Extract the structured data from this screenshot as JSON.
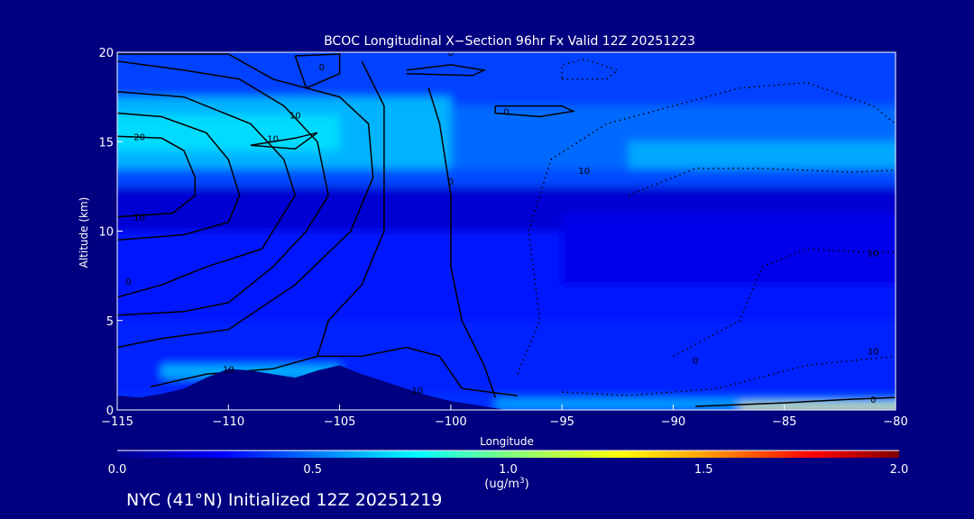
{
  "chart_data": {
    "type": "heatmap",
    "title": "BCOC Longitudinal X−Section 96hr  Fx Valid 12Z 20251223",
    "xlabel": "Longitude",
    "ylabel": "Altitude (km)",
    "xlim": [
      -115,
      -80
    ],
    "ylim": [
      0,
      20
    ],
    "xticks": [
      -115,
      -110,
      -105,
      -100,
      -95,
      -90,
      -85,
      -80
    ],
    "xtick_labels": [
      "−115",
      "−110",
      "−105",
      "−100",
      "−95",
      "−90",
      "−85",
      "−80"
    ],
    "yticks": [
      0,
      5,
      10,
      15,
      20
    ],
    "ytick_labels": [
      "0",
      "5",
      "10",
      "15",
      "20"
    ],
    "colorbar": {
      "range": [
        0,
        2
      ],
      "ticks": [
        "0.0",
        "0.5",
        "1.0",
        "1.5",
        "2.0"
      ],
      "unit_line1": "(ug/m",
      "unit_sup": "3",
      "unit_line2": ")",
      "stops": [
        [
          0,
          "#000090"
        ],
        [
          0.27,
          "#0000ff"
        ],
        [
          0.77,
          "#00ffff"
        ],
        [
          1.0,
          "#80ff80"
        ],
        [
          1.29,
          "#ffff00"
        ],
        [
          1.5,
          "#ffa000"
        ],
        [
          1.78,
          "#ff0000"
        ],
        [
          2.0,
          "#800000"
        ]
      ]
    },
    "field_layers": [
      {
        "lon": [
          -115,
          -80
        ],
        "alt": [
          0,
          1
        ],
        "value": 0.36
      },
      {
        "lon": [
          -115,
          -80
        ],
        "alt": [
          1,
          5
        ],
        "value": 0.34
      },
      {
        "lon": [
          -115,
          -80
        ],
        "alt": [
          5,
          10
        ],
        "value": 0.31
      },
      {
        "lon": [
          -115,
          -80
        ],
        "alt": [
          10,
          12.5
        ],
        "value": 0.16
      },
      {
        "lon": [
          -115,
          -80
        ],
        "alt": [
          12.5,
          13.5
        ],
        "value": 0.42
      },
      {
        "lon": [
          -115,
          -80
        ],
        "alt": [
          13.5,
          17
        ],
        "value": 0.48
      },
      {
        "lon": [
          -115,
          -80
        ],
        "alt": [
          17,
          20
        ],
        "value": 0.4
      },
      {
        "lon": [
          -115,
          -100
        ],
        "alt": [
          13.5,
          17.5
        ],
        "value": 0.62
      },
      {
        "lon": [
          -115,
          -105
        ],
        "alt": [
          14.5,
          16.5
        ],
        "value": 0.7
      },
      {
        "lon": [
          -92,
          -80
        ],
        "alt": [
          13.5,
          15
        ],
        "value": 0.6
      },
      {
        "lon": [
          -95,
          -80
        ],
        "alt": [
          7,
          11
        ],
        "value": 0.22
      },
      {
        "lon": [
          -113,
          -105
        ],
        "alt": [
          1.8,
          2.5
        ],
        "value": 0.62
      },
      {
        "lon": [
          -98,
          -80
        ],
        "alt": [
          0.1,
          0.6
        ],
        "value": 0.6
      },
      {
        "lon": [
          -87,
          -80
        ],
        "alt": [
          0,
          0.3
        ],
        "value": 1.25
      }
    ],
    "terrain": [
      [
        -115,
        0
      ],
      [
        -115,
        0.8
      ],
      [
        -114,
        0.7
      ],
      [
        -113,
        0.9
      ],
      [
        -112,
        1.2
      ],
      [
        -111,
        1.8
      ],
      [
        -110,
        2.3
      ],
      [
        -109,
        2.2
      ],
      [
        -108,
        2.0
      ],
      [
        -107,
        1.8
      ],
      [
        -106,
        2.2
      ],
      [
        -105,
        2.5
      ],
      [
        -104,
        2.0
      ],
      [
        -103,
        1.6
      ],
      [
        -102,
        1.2
      ],
      [
        -101,
        0.8
      ],
      [
        -100,
        0.5
      ],
      [
        -99,
        0.3
      ],
      [
        -97.5,
        0
      ]
    ],
    "contours_solid": [
      [
        [
          -115,
          15.3
        ],
        [
          -113,
          15.2
        ],
        [
          -112,
          14.5
        ],
        [
          -111.5,
          13
        ],
        [
          -111.5,
          12
        ],
        [
          -112.5,
          11
        ],
        [
          -115,
          10.8
        ]
      ],
      [
        [
          -115,
          16.6
        ],
        [
          -113,
          16.4
        ],
        [
          -111,
          15.5
        ],
        [
          -110,
          14
        ],
        [
          -109.5,
          12
        ],
        [
          -110,
          10.5
        ],
        [
          -112,
          9.8
        ],
        [
          -115,
          9.5
        ]
      ],
      [
        [
          -115,
          17.8
        ],
        [
          -112,
          17.5
        ],
        [
          -109,
          16
        ],
        [
          -107.5,
          14
        ],
        [
          -107,
          12
        ],
        [
          -108.5,
          9
        ],
        [
          -111,
          8
        ],
        [
          -113,
          7
        ],
        [
          -115,
          6.3
        ]
      ],
      [
        [
          -115,
          19.5
        ],
        [
          -112,
          19
        ],
        [
          -109.5,
          18.5
        ],
        [
          -107.5,
          17
        ],
        [
          -106,
          15
        ],
        [
          -105.5,
          12
        ],
        [
          -106.5,
          10
        ],
        [
          -108,
          8
        ],
        [
          -110,
          6
        ],
        [
          -112,
          5.5
        ],
        [
          -115,
          5.3
        ]
      ],
      [
        [
          -115,
          19.9
        ],
        [
          -110,
          19.9
        ],
        [
          -108,
          18.5
        ],
        [
          -105,
          17.5
        ],
        [
          -103.7,
          16
        ],
        [
          -103.5,
          13
        ],
        [
          -104.5,
          10
        ],
        [
          -107,
          7
        ],
        [
          -110,
          4.5
        ],
        [
          -113,
          4
        ],
        [
          -115,
          3.5
        ]
      ],
      [
        [
          -104,
          19.5
        ],
        [
          -103,
          17
        ],
        [
          -103,
          14
        ],
        [
          -103,
          10
        ],
        [
          -104,
          7
        ],
        [
          -105.5,
          5
        ],
        [
          -106,
          3
        ]
      ],
      [
        [
          -101,
          18
        ],
        [
          -100.5,
          16
        ],
        [
          -100,
          12
        ],
        [
          -100,
          8
        ],
        [
          -99.5,
          5
        ],
        [
          -98.5,
          2.5
        ],
        [
          -98,
          0.7
        ]
      ],
      [
        [
          -107,
          19.8
        ],
        [
          -105,
          19.9
        ],
        [
          -105,
          18.8
        ],
        [
          -106.5,
          18
        ],
        [
          -107,
          19.8
        ]
      ],
      [
        [
          -109,
          14.8
        ],
        [
          -107,
          15.2
        ],
        [
          -106,
          15.5
        ],
        [
          -107,
          14.6
        ],
        [
          -109,
          14.8
        ]
      ],
      [
        [
          -98,
          17
        ],
        [
          -95,
          17
        ],
        [
          -94.5,
          16.7
        ],
        [
          -96,
          16.4
        ],
        [
          -98,
          16.6
        ],
        [
          -98,
          17
        ]
      ],
      [
        [
          -102,
          18.8
        ],
        [
          -99,
          18.7
        ],
        [
          -98.5,
          19
        ],
        [
          -100,
          19.3
        ],
        [
          -102,
          19
        ]
      ],
      [
        [
          -113.5,
          1.3
        ],
        [
          -111,
          2
        ],
        [
          -108,
          2.3
        ],
        [
          -106,
          3
        ],
        [
          -104,
          3
        ],
        [
          -102,
          3.5
        ],
        [
          -100.5,
          3
        ],
        [
          -99.5,
          1.2
        ],
        [
          -97,
          0.8
        ]
      ],
      [
        [
          -89,
          0.2
        ],
        [
          -85,
          0.4
        ],
        [
          -82,
          0.6
        ],
        [
          -80,
          0.7
        ]
      ]
    ],
    "contours_dotted": [
      [
        [
          -97,
          2
        ],
        [
          -96,
          5
        ],
        [
          -96.5,
          10
        ],
        [
          -95.5,
          14
        ],
        [
          -93,
          16
        ],
        [
          -90,
          17
        ],
        [
          -87,
          18
        ],
        [
          -84,
          18.3
        ],
        [
          -81,
          17
        ],
        [
          -80,
          16
        ]
      ],
      [
        [
          -90,
          3
        ],
        [
          -87,
          5
        ],
        [
          -86,
          8
        ],
        [
          -84,
          9
        ],
        [
          -81,
          8.8
        ],
        [
          -80,
          8.8
        ]
      ],
      [
        [
          -95,
          18.5
        ],
        [
          -93,
          18.5
        ],
        [
          -92.5,
          19
        ],
        [
          -94,
          19.6
        ],
        [
          -95,
          19.3
        ],
        [
          -95,
          18.5
        ]
      ],
      [
        [
          -92,
          12
        ],
        [
          -89,
          13.5
        ],
        [
          -86,
          13.5
        ],
        [
          -82,
          13.3
        ],
        [
          -80,
          13.4
        ]
      ],
      [
        [
          -95,
          1
        ],
        [
          -92,
          0.8
        ],
        [
          -88,
          1.2
        ],
        [
          -84,
          2.5
        ],
        [
          -80,
          3
        ]
      ]
    ],
    "contour_labels": [
      {
        "lon": -100,
        "alt": 20,
        "text": "0"
      },
      {
        "lon": -105.8,
        "alt": 19.2,
        "text": "0"
      },
      {
        "lon": -107,
        "alt": 16.5,
        "text": "10"
      },
      {
        "lon": -108,
        "alt": 15.2,
        "text": "10"
      },
      {
        "lon": -114,
        "alt": 15.3,
        "text": "20"
      },
      {
        "lon": -97.5,
        "alt": 16.7,
        "text": "0"
      },
      {
        "lon": -100,
        "alt": 12.8,
        "text": "0"
      },
      {
        "lon": -94,
        "alt": 13.4,
        "text": "10"
      },
      {
        "lon": -114,
        "alt": 10.8,
        "text": "10"
      },
      {
        "lon": -114.5,
        "alt": 7.2,
        "text": "0"
      },
      {
        "lon": -110,
        "alt": 2.3,
        "text": "10"
      },
      {
        "lon": -101.5,
        "alt": 1.1,
        "text": "10"
      },
      {
        "lon": -81,
        "alt": 8.8,
        "text": "10"
      },
      {
        "lon": -81,
        "alt": 3.3,
        "text": "10"
      },
      {
        "lon": -89,
        "alt": 2.8,
        "text": "0"
      },
      {
        "lon": -81,
        "alt": 0.6,
        "text": "0"
      }
    ]
  },
  "footer": {
    "caption": "NYC (41°N) Initialized 12Z 20251219"
  }
}
